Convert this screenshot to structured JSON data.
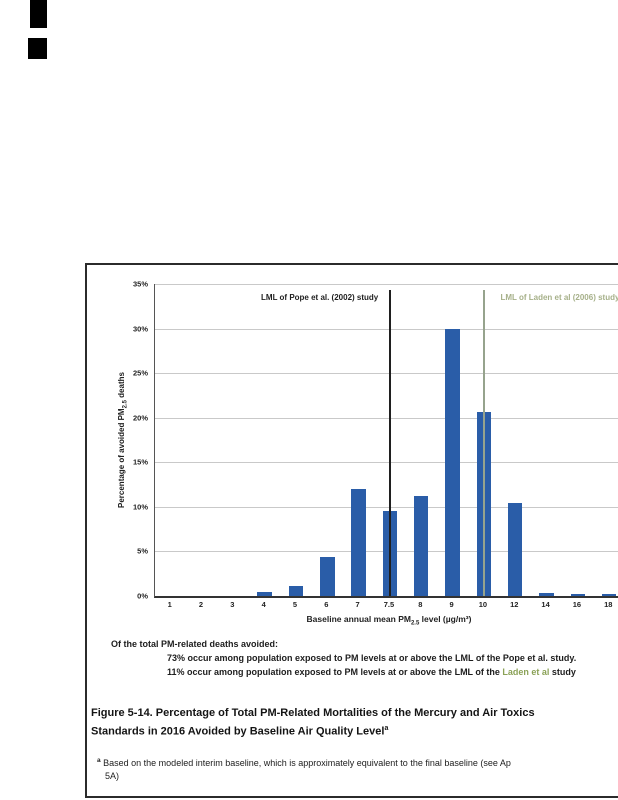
{
  "chart_data": {
    "type": "bar",
    "categories": [
      "1",
      "2",
      "3",
      "4",
      "5",
      "6",
      "7",
      "7.5",
      "8",
      "9",
      "10",
      "12",
      "14",
      "16",
      "18"
    ],
    "values": [
      0,
      0,
      0,
      0.4,
      1.1,
      4.4,
      12,
      9.5,
      11.2,
      30,
      20.6,
      10.4,
      0.3,
      0.2,
      0.2
    ],
    "bar_color": "#2a5da8",
    "ylim": [
      0,
      35
    ],
    "ytick_step": 5,
    "ytick_suffix": "%",
    "grid": true,
    "ylabel_parts": {
      "pre": "Percentage of avoided PM",
      "sub": "2.5",
      "post": " deaths"
    },
    "xlabel_parts": {
      "pre": "Baseline annual mean PM",
      "sub": "2.5",
      "post": " level (µg/m³)"
    },
    "annotations": [
      {
        "label": "LML of Pope et al. (2002) study",
        "category": "7.5",
        "line_color": "#1f1f1f",
        "label_color": "#1f1f1f",
        "label_side": "left"
      },
      {
        "label": "LML of Laden et al (2006) study",
        "category": "10",
        "line_color": "#96a38d",
        "label_color": "#a6b089",
        "label_side": "right"
      }
    ]
  },
  "summary": {
    "intro": "Of the total PM-related deaths avoided:",
    "line1": "73% occur among population exposed to PM levels at or above the LML of the Pope et al. study.",
    "line2_pre": "11% occur among population exposed to PM levels at or above the LML of the ",
    "line2_highlight": "Laden et al",
    "line2_post": " study",
    "highlight_color": "#8ba257"
  },
  "caption": {
    "line1": "Figure 5-14. Percentage of Total PM-Related Mortalities of the Mercury and Air Toxics",
    "line2": "Standards in 2016 Avoided by Baseline Air Quality Level",
    "superscript": "a"
  },
  "footnote": {
    "marker": "a",
    "line1": "Based on the modeled interim baseline, which is approximately equivalent to the final baseline (see Ap",
    "line2": "5A)"
  }
}
